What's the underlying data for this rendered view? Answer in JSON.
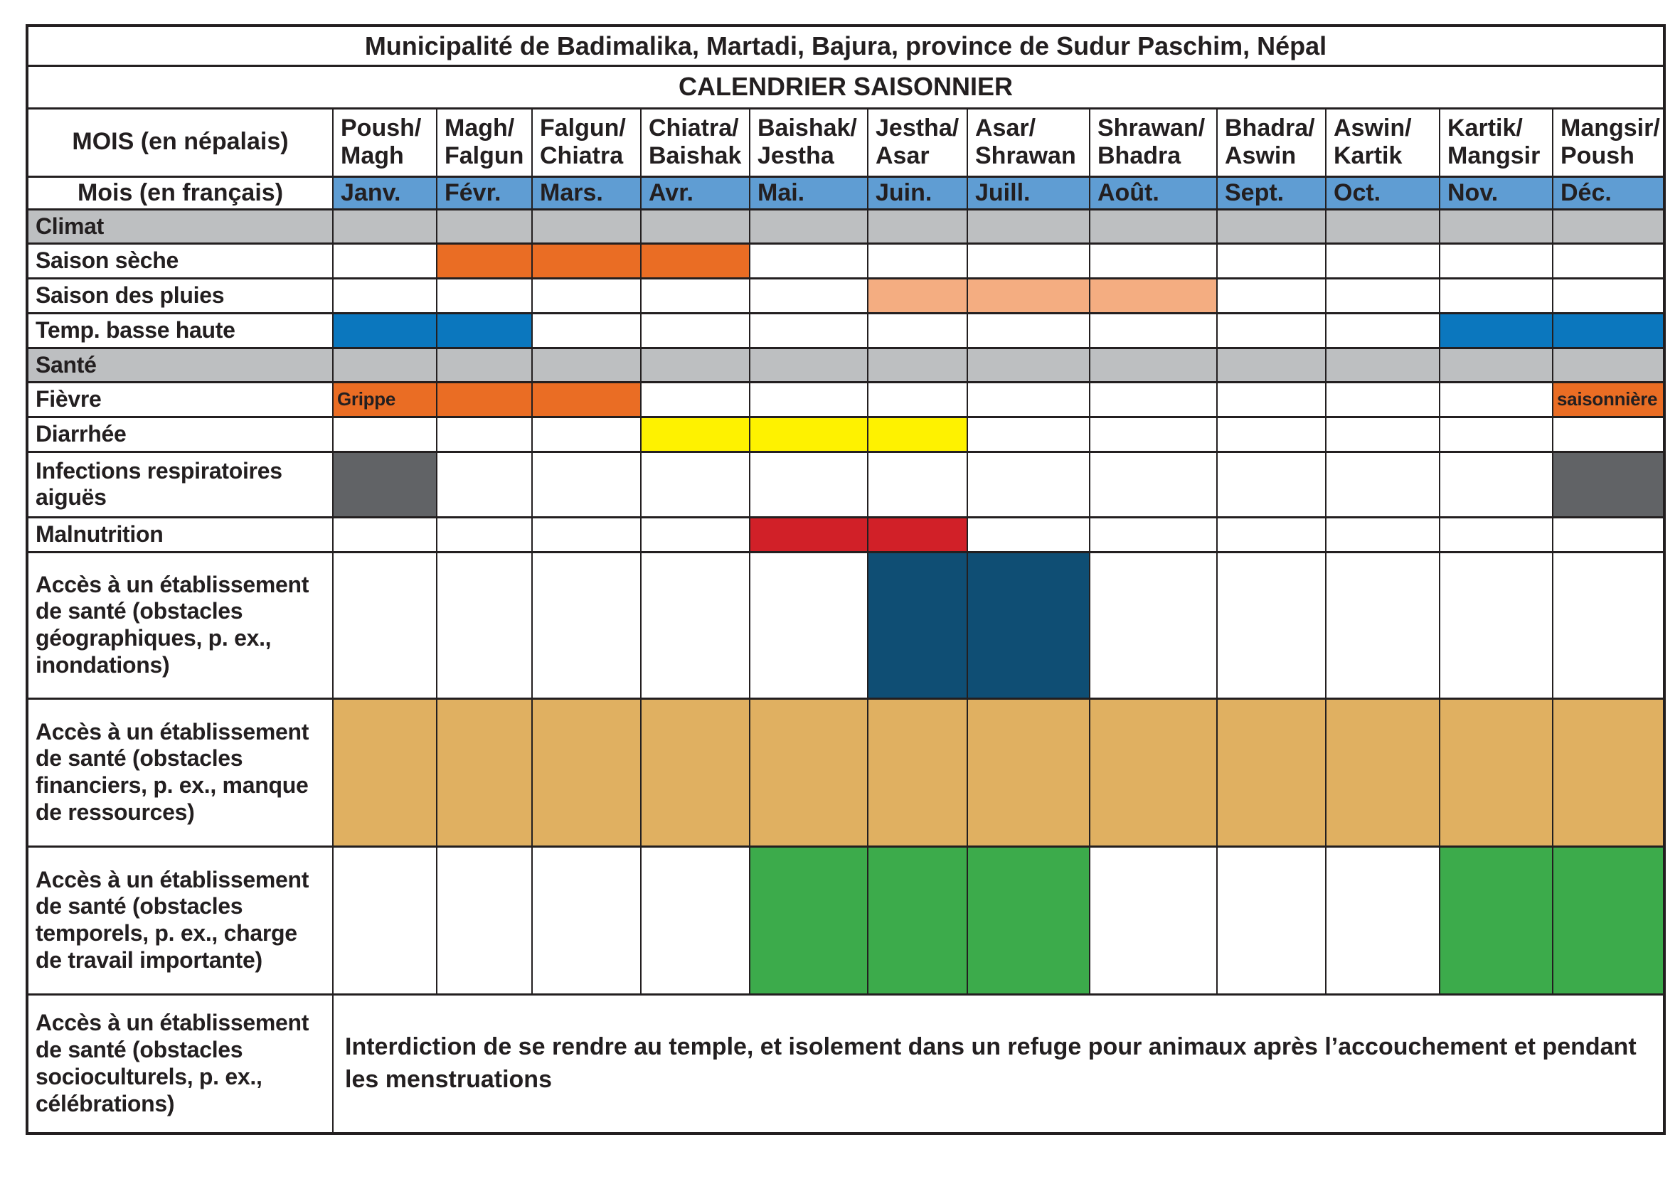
{
  "title": "Municipalité de Badimalika, Martadi, Bajura, province de Sudur Paschim, Népal",
  "subtitle": "CALENDRIER SAISONNIER",
  "headers": {
    "nepali_label": "MOIS (en népalais)",
    "french_label": "Mois (en français)",
    "months_nepali": [
      "Poush/\nMagh",
      "Magh/\nFalgun",
      "Falgun/\nChiatra",
      "Chiatra/\nBaishak",
      "Baishak/\nJestha",
      "Jestha/\nAsar",
      "Asar/\nShrawan",
      "Shrawan/\nBhadra",
      "Bhadra/\nAswin",
      "Aswin/\nKartik",
      "Kartik/\nMangsir",
      "Mangsir/\nPoush"
    ],
    "months_french": [
      "Janv.",
      "Févr.",
      "Mars.",
      "Avr.",
      "Mai.",
      "Juin.",
      "Juill.",
      "Août.",
      "Sept.",
      "Oct.",
      "Nov.",
      "Déc."
    ]
  },
  "colors": {
    "month_blue": "#5f9dd3",
    "gray": "#bdbfc1",
    "orange": "#ea6d24",
    "peach": "#f4ad81",
    "blue": "#0b77be",
    "yellow": "#fef200",
    "darkgray": "#616366",
    "red": "#d12028",
    "navy": "#0f4e74",
    "tan": "#e0b061",
    "green": "#3cab4b"
  },
  "layout": {
    "label_col_width": 430,
    "month_col_widths": [
      146,
      134,
      153,
      153,
      166,
      140,
      172,
      179,
      153,
      160,
      159,
      157
    ],
    "row_heights": {
      "title": 56,
      "subtitle": 60,
      "nepali": 96,
      "french": 46,
      "body": [
        46,
        48,
        48,
        48,
        48,
        48,
        48,
        92,
        48,
        206,
        208,
        208,
        196
      ]
    }
  },
  "rows": [
    {
      "id": "climat",
      "type": "section",
      "label": "Climat",
      "fills": [
        "gray",
        "gray",
        "gray",
        "gray",
        "gray",
        "gray",
        "gray",
        "gray",
        "gray",
        "gray",
        "gray",
        "gray"
      ]
    },
    {
      "id": "saison-seche",
      "label": "Saison sèche",
      "fills": [
        "",
        "orange",
        "orange",
        "orange",
        "",
        "",
        "",
        "",
        "",
        "",
        "",
        ""
      ]
    },
    {
      "id": "saison-pluies",
      "label": "Saison des pluies",
      "fills": [
        "",
        "",
        "",
        "",
        "",
        "peach",
        "peach",
        "peach",
        "",
        "",
        "",
        ""
      ]
    },
    {
      "id": "temp-basse-haute",
      "label": "Temp. basse haute",
      "fills": [
        "blue",
        "blue",
        "",
        "",
        "",
        "",
        "",
        "",
        "",
        "",
        "blue",
        "blue"
      ]
    },
    {
      "id": "sante",
      "type": "section",
      "label": "Santé",
      "fills": [
        "gray",
        "gray",
        "gray",
        "gray",
        "gray",
        "gray",
        "gray",
        "gray",
        "gray",
        "gray",
        "gray",
        "gray"
      ]
    },
    {
      "id": "fievre",
      "label": "Fièvre",
      "fills": [
        "orange",
        "orange",
        "orange",
        "",
        "",
        "",
        "",
        "",
        "",
        "",
        "",
        "orange"
      ],
      "texts": {
        "0": "Grippe",
        "11": "saisonnière"
      }
    },
    {
      "id": "diarrhee",
      "label": "Diarrhée",
      "fills": [
        "",
        "",
        "",
        "yellow",
        "yellow",
        "yellow",
        "",
        "",
        "",
        "",
        "",
        ""
      ]
    },
    {
      "id": "infections-respiratoires",
      "label": "Infections respiratoires aiguës",
      "fills": [
        "darkgray",
        "",
        "",
        "",
        "",
        "",
        "",
        "",
        "",
        "",
        "",
        "darkgray"
      ]
    },
    {
      "id": "malnutrition",
      "label": "Malnutrition",
      "fills": [
        "",
        "",
        "",
        "",
        "red",
        "red",
        "",
        "",
        "",
        "",
        "",
        ""
      ]
    },
    {
      "id": "acces-geographiques",
      "label": "Accès à un établissement de santé (obstacles géographiques, p. ex., inondations)",
      "fills": [
        "",
        "",
        "",
        "",
        "",
        "navy",
        "navy",
        "",
        "",
        "",
        "",
        ""
      ]
    },
    {
      "id": "acces-financiers",
      "label": "Accès à un établissement de santé (obstacles financiers, p. ex., manque de ressources)",
      "fills": [
        "tan",
        "tan",
        "tan",
        "tan",
        "tan",
        "tan",
        "tan",
        "tan",
        "tan",
        "tan",
        "tan",
        "tan"
      ]
    },
    {
      "id": "acces-temporels",
      "label": "Accès à un établissement de santé (obstacles temporels, p. ex., charge de travail importante)",
      "fills": [
        "",
        "",
        "",
        "",
        "green",
        "green",
        "green",
        "",
        "",
        "",
        "green",
        "green"
      ]
    },
    {
      "id": "acces-socioculturels",
      "type": "note",
      "label": "Accès à un établissement de santé (obstacles socioculturels, p. ex., célébrations)",
      "note": "Interdiction de se rendre au temple, et isolement dans un refuge pour animaux après l’accouchement et pendant les menstruations"
    }
  ],
  "chart_data": {
    "type": "table",
    "title": "CALENDRIER SAISONNIER",
    "months": [
      "Janv.",
      "Févr.",
      "Mars.",
      "Avr.",
      "Mai.",
      "Juin.",
      "Juill.",
      "Août.",
      "Sept.",
      "Oct.",
      "Nov.",
      "Déc."
    ],
    "series": [
      {
        "name": "Saison sèche",
        "active_months": [
          "Févr.",
          "Mars.",
          "Avr."
        ]
      },
      {
        "name": "Saison des pluies",
        "active_months": [
          "Juin.",
          "Juill.",
          "Août."
        ]
      },
      {
        "name": "Temp. basse haute",
        "active_months": [
          "Janv.",
          "Févr.",
          "Nov.",
          "Déc."
        ]
      },
      {
        "name": "Fièvre",
        "active_months": [
          "Janv.",
          "Févr.",
          "Mars.",
          "Déc."
        ],
        "annotations": {
          "Janv.": "Grippe",
          "Déc.": "saisonnière"
        }
      },
      {
        "name": "Diarrhée",
        "active_months": [
          "Avr.",
          "Mai.",
          "Juin."
        ]
      },
      {
        "name": "Infections respiratoires aiguës",
        "active_months": [
          "Janv.",
          "Déc."
        ]
      },
      {
        "name": "Malnutrition",
        "active_months": [
          "Mai.",
          "Juin."
        ]
      },
      {
        "name": "Accès à un établissement de santé (obstacles géographiques, p. ex., inondations)",
        "active_months": [
          "Juin.",
          "Juill."
        ]
      },
      {
        "name": "Accès à un établissement de santé (obstacles financiers, p. ex., manque de ressources)",
        "active_months": [
          "Janv.",
          "Févr.",
          "Mars.",
          "Avr.",
          "Mai.",
          "Juin.",
          "Juill.",
          "Août.",
          "Sept.",
          "Oct.",
          "Nov.",
          "Déc."
        ]
      },
      {
        "name": "Accès à un établissement de santé (obstacles temporels, p. ex., charge de travail importante)",
        "active_months": [
          "Mai.",
          "Juin.",
          "Juill.",
          "Nov.",
          "Déc."
        ]
      },
      {
        "name": "Accès à un établissement de santé (obstacles socioculturels, p. ex., célébrations)",
        "note": "Interdiction de se rendre au temple, et isolement dans un refuge pour animaux après l’accouchement et pendant les menstruations"
      }
    ]
  }
}
